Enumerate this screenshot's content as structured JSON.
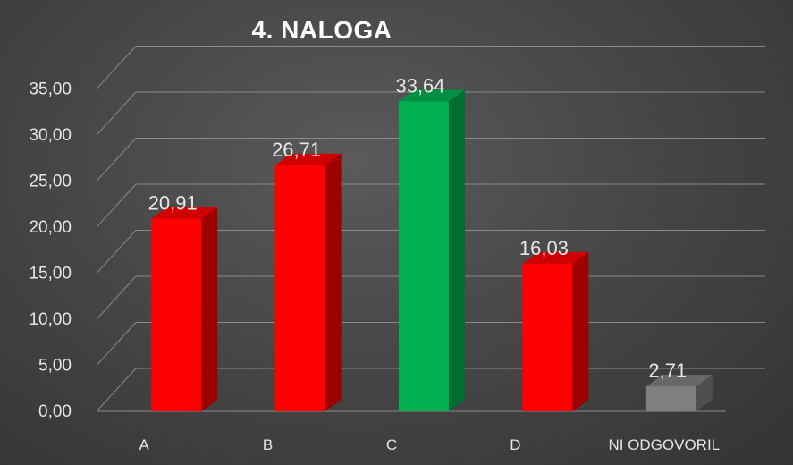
{
  "chart_data": {
    "type": "bar",
    "title": "4. NALOGA",
    "categories": [
      "A",
      "B",
      "C",
      "D",
      "NI ODGOVORIL"
    ],
    "values": [
      20.91,
      26.71,
      33.64,
      16.03,
      2.71
    ],
    "value_labels": [
      "20,91",
      "26,71",
      "33,64",
      "16,03",
      "2,71"
    ],
    "ylim": [
      0,
      35
    ],
    "yticks": [
      "0,00",
      "5,00",
      "10,00",
      "15,00",
      "20,00",
      "25,00",
      "30,00",
      "35,00"
    ],
    "colors": [
      "#ff0000",
      "#ff0000",
      "#00b050",
      "#ff0000",
      "#7f7f7f"
    ],
    "xlabel": "",
    "ylabel": "",
    "grid": true,
    "style": "3d-column"
  }
}
